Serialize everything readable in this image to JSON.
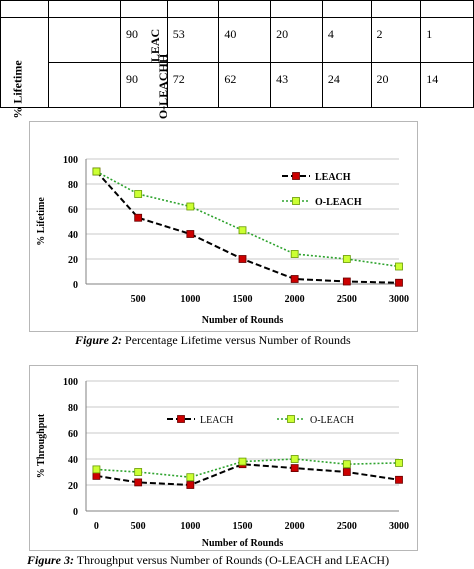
{
  "table": {
    "row_header": "% Lifetime",
    "rows": [
      {
        "label": "LEAC",
        "values": [
          "90",
          "53",
          "40",
          "20",
          "4",
          "2",
          "1"
        ]
      },
      {
        "label": "O-LEACHH",
        "values": [
          "90",
          "72",
          "62",
          "43",
          "24",
          "20",
          "14"
        ]
      }
    ]
  },
  "figure2": {
    "caption_label": "Figure 2:",
    "caption_text": " Percentage Lifetime versus Number of Rounds"
  },
  "figure3": {
    "caption_label": "Figure 3:",
    "caption_text": " Throughput versus Number of Rounds (O-LEACH and LEACH)"
  },
  "chart_data": [
    {
      "type": "line",
      "ylabel": "% Lifetime",
      "xlabel": "Number of Rounds",
      "x": [
        100,
        500,
        1000,
        1500,
        2000,
        2500,
        3000
      ],
      "x_tick_labels": [
        "500",
        "1000",
        "1500",
        "2000",
        "2500",
        "3000"
      ],
      "ylim": [
        0,
        100
      ],
      "y_ticks": [
        0,
        20,
        40,
        60,
        80,
        100
      ],
      "xlim": [
        0,
        3000
      ],
      "grid": true,
      "legend": "right",
      "series": [
        {
          "name": "LEACH",
          "values": [
            90,
            53,
            40,
            20,
            4,
            2,
            1
          ],
          "color": "#000000",
          "marker": "#cc0000"
        },
        {
          "name": "O-LEACH",
          "values": [
            90,
            72,
            62,
            43,
            24,
            20,
            14
          ],
          "color": "#2ea32e",
          "marker": "#ccff33"
        }
      ]
    },
    {
      "type": "line",
      "ylabel": "% Throughput",
      "xlabel": "Number of Rounds",
      "x": [
        100,
        500,
        1000,
        1500,
        2000,
        2500,
        3000
      ],
      "x_tick_labels": [
        "0",
        "500",
        "1000",
        "1500",
        "2000",
        "2500",
        "3000"
      ],
      "ylim": [
        0,
        100
      ],
      "y_ticks": [
        0,
        20,
        40,
        60,
        80,
        100
      ],
      "xlim": [
        0,
        3000
      ],
      "grid": true,
      "legend": "top",
      "series": [
        {
          "name": "LEACH",
          "values": [
            27,
            22,
            20,
            36,
            33,
            30,
            24
          ],
          "color": "#000000",
          "marker": "#cc0000"
        },
        {
          "name": "O-LEACH",
          "values": [
            32,
            30,
            26,
            38,
            40,
            36,
            37
          ],
          "color": "#2ea32e",
          "marker": "#ccff33"
        }
      ]
    }
  ]
}
